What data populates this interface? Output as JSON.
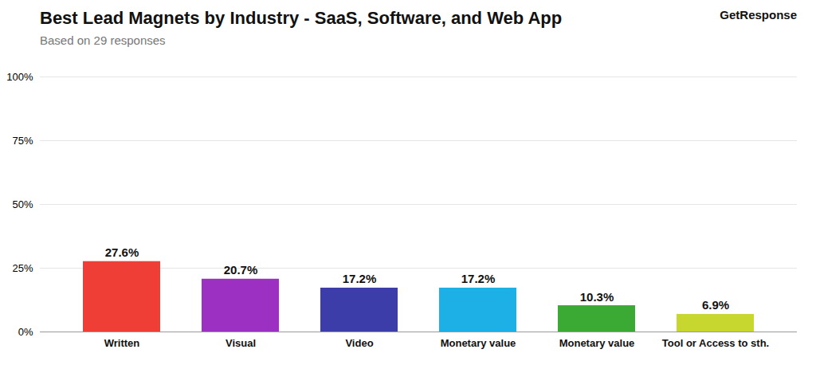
{
  "chart_data": {
    "type": "bar",
    "title": "Best Lead Magnets by Industry - SaaS, Software, and Web App",
    "subtitle": "Based on 29 responses",
    "annotations": [
      "GetResponse"
    ],
    "categories": [
      "Written",
      "Visual",
      "Video",
      "Monetary value",
      "Monetary value",
      "Tool or Access to sth."
    ],
    "values": [
      27.6,
      20.7,
      17.2,
      17.2,
      10.3,
      6.9
    ],
    "value_labels": [
      "27.6%",
      "20.7%",
      "17.2%",
      "17.2%",
      "10.3%",
      "6.9%"
    ],
    "data_labels": true,
    "colors": [
      "#ef3e36",
      "#9b30c2",
      "#3d3daa",
      "#1db0e6",
      "#3aaa35",
      "#c8d630"
    ],
    "ylim": [
      0,
      100
    ],
    "yticks": [
      {
        "value": 0,
        "label": "0%"
      },
      {
        "value": 25,
        "label": "25%"
      },
      {
        "value": 50,
        "label": "50%"
      },
      {
        "value": 75,
        "label": "75%"
      },
      {
        "value": 100,
        "label": "100%"
      }
    ],
    "grid": true
  }
}
